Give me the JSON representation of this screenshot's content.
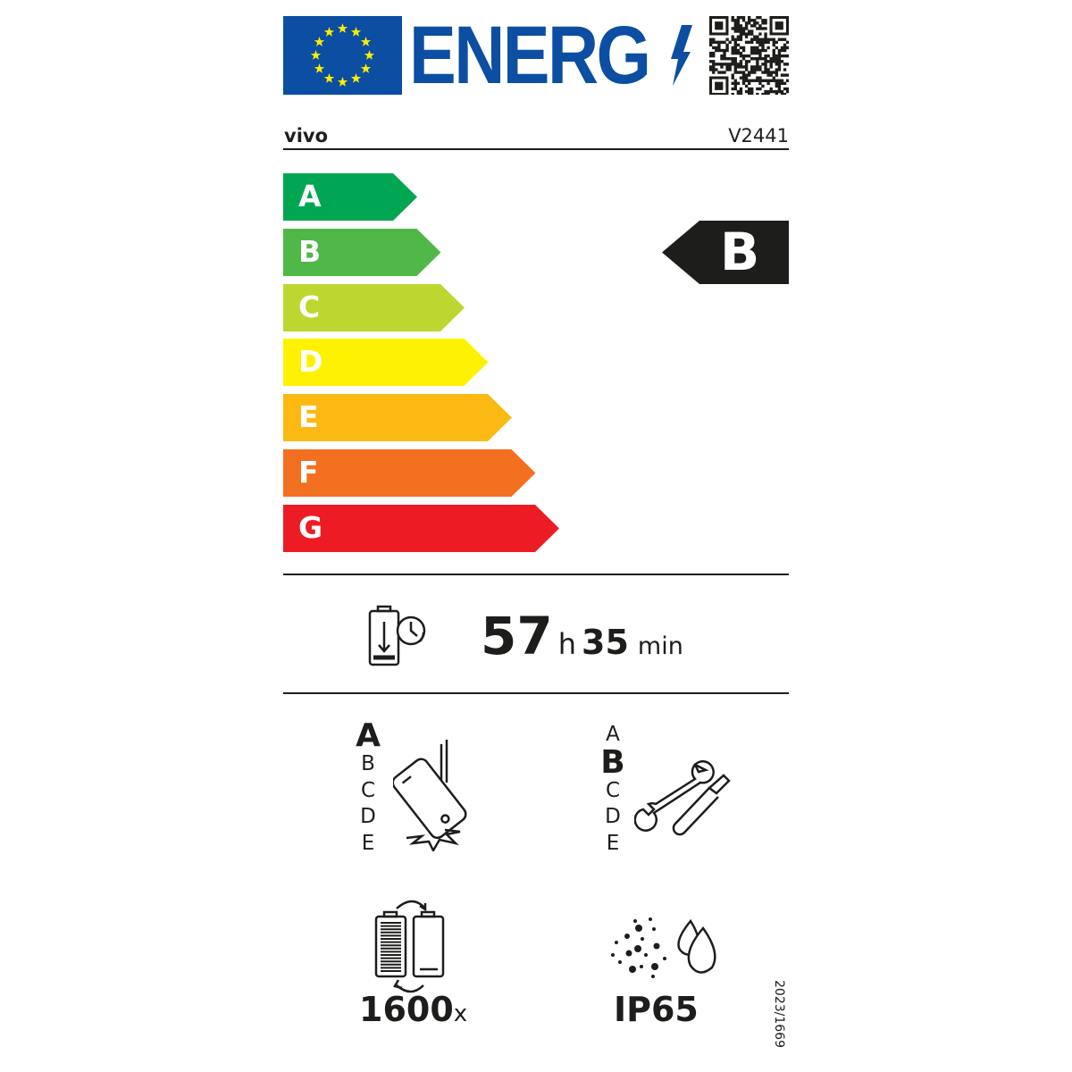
{
  "header": {
    "logo_text": "ENERG",
    "qr_code": "qr-code-icon",
    "eu_flag": "eu-flag-icon",
    "colors": {
      "brand_blue": "#0b4ea2",
      "star_yellow": "#ffed00"
    }
  },
  "supplier": "vivo",
  "model": "V2441",
  "energy_scale": {
    "classes": [
      {
        "letter": "A",
        "color": "#00a651"
      },
      {
        "letter": "B",
        "color": "#50b848"
      },
      {
        "letter": "C",
        "color": "#bed630"
      },
      {
        "letter": "D",
        "color": "#fff200"
      },
      {
        "letter": "E",
        "color": "#fdb913"
      },
      {
        "letter": "F",
        "color": "#f37021"
      },
      {
        "letter": "G",
        "color": "#ed1c24"
      }
    ],
    "rating": "B"
  },
  "battery_endurance": {
    "hours": "57",
    "hours_unit": "h",
    "minutes": "35",
    "minutes_unit": "min"
  },
  "drop_resistance": {
    "classes": [
      "A",
      "B",
      "C",
      "D",
      "E"
    ],
    "rating": "A"
  },
  "repairability": {
    "classes": [
      "A",
      "B",
      "C",
      "D",
      "E"
    ],
    "rating": "B"
  },
  "battery_cycles": {
    "value": "1600",
    "unit": "x"
  },
  "ingress_protection": "IP65",
  "regulation": "2023/1669"
}
